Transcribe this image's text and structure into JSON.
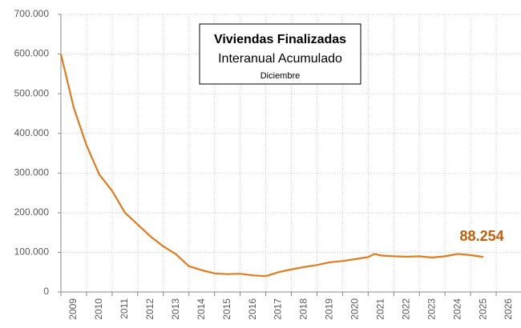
{
  "chart_data": {
    "type": "line",
    "title": "Viviendas Finalizadas",
    "subtitle": "Interanual Acumulado",
    "note": "Diciembre",
    "x": [
      2009.0,
      2009.5,
      2010.0,
      2010.5,
      2011.0,
      2011.5,
      2012.0,
      2012.5,
      2013.0,
      2013.5,
      2014.0,
      2014.5,
      2015.0,
      2015.5,
      2016.0,
      2016.5,
      2017.0,
      2017.5,
      2018.0,
      2018.5,
      2019.0,
      2019.5,
      2020.0,
      2020.5,
      2021.0,
      2021.25,
      2021.5,
      2022.0,
      2022.5,
      2023.0,
      2023.5,
      2024.0,
      2024.5,
      2025.0,
      2025.5
    ],
    "series": [
      {
        "name": "Viviendas Finalizadas",
        "color": "#e07b1f",
        "values": [
          600000,
          465000,
          370000,
          296000,
          255000,
          200000,
          170000,
          140000,
          115000,
          95000,
          65000,
          55000,
          47000,
          45000,
          46000,
          42000,
          40000,
          50000,
          57000,
          63000,
          68000,
          75000,
          78000,
          83000,
          88000,
          96000,
          92000,
          90000,
          89000,
          90000,
          87000,
          90000,
          96000,
          93000,
          88254
        ],
        "value_labels": [
          null,
          null,
          null,
          null,
          null,
          null,
          null,
          null,
          null,
          null,
          null,
          null,
          null,
          null,
          null,
          null,
          null,
          null,
          null,
          null,
          null,
          null,
          null,
          null,
          null,
          null,
          null,
          null,
          null,
          null,
          null,
          null,
          null,
          null,
          "88.254"
        ]
      }
    ],
    "xlim": [
      2009,
      2027
    ],
    "xticks": [
      2009,
      2010,
      2011,
      2012,
      2013,
      2014,
      2015,
      2016,
      2017,
      2018,
      2019,
      2020,
      2021,
      2022,
      2023,
      2024,
      2025,
      2026
    ],
    "ylim": [
      0,
      700000
    ],
    "yticks": [
      0,
      {
        "value": 100000,
        "label": "100.000"
      },
      {
        "value": 200000,
        "label": "200.000"
      },
      {
        "value": 300000,
        "label": "300.000"
      },
      {
        "value": 400000,
        "label": "400.000"
      },
      {
        "value": 500000,
        "label": "500.000"
      },
      {
        "value": 600000,
        "label": "600.000"
      },
      {
        "value": 700000,
        "label": "700.000"
      }
    ],
    "grid": true
  }
}
